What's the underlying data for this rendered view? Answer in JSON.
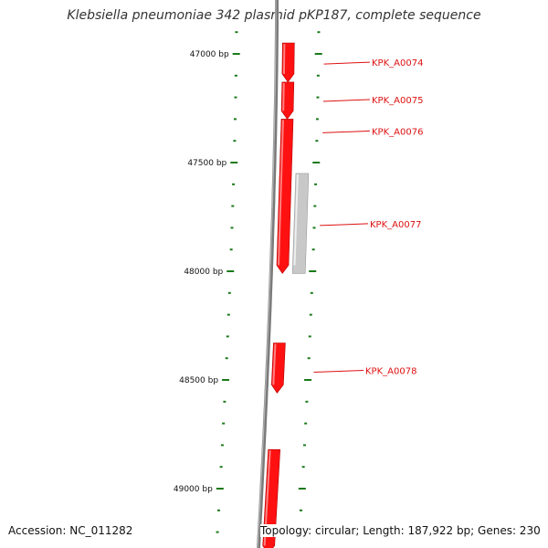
{
  "title": "Klebsiella pneumoniae 342 plasmid pKP187, complete sequence",
  "footer": {
    "accession": "Accession: NC_011282",
    "topology": "Topology: circular; Length: 187,922 bp; Genes: 230"
  },
  "colors": {
    "forward_gene": "#ff1111",
    "reverse_gene": "#c8c8c8",
    "backbone": "#7a7a7a",
    "ticks": "#1a7a1a",
    "gene_label": "#dd1111",
    "tick_label": "#111111"
  },
  "ruler": {
    "unit": "bp",
    "labeled_ticks": [
      {
        "position": 47000,
        "label": "47000 bp"
      },
      {
        "position": 47500,
        "label": "47500 bp"
      },
      {
        "position": 48000,
        "label": "48000 bp"
      },
      {
        "position": 48500,
        "label": "48500 bp"
      },
      {
        "position": 49000,
        "label": "49000 bp"
      }
    ],
    "minor_tick_step": 100
  },
  "genes": [
    {
      "name": "KPK_A0074",
      "start": 46950,
      "end": 47130,
      "strand": "+"
    },
    {
      "name": "KPK_A0075",
      "start": 47130,
      "end": 47300,
      "strand": "+"
    },
    {
      "name": "KPK_A0076",
      "start": 47300,
      "end": 48010,
      "strand": "+"
    },
    {
      "name": "KPK_A0077",
      "start": 47550,
      "end": 48010,
      "strand": "-"
    },
    {
      "name": "KPK_A0078",
      "start": 48330,
      "end": 48560,
      "strand": "+"
    },
    {
      "name": "",
      "start": 48820,
      "end": 49300,
      "strand": "+"
    }
  ]
}
